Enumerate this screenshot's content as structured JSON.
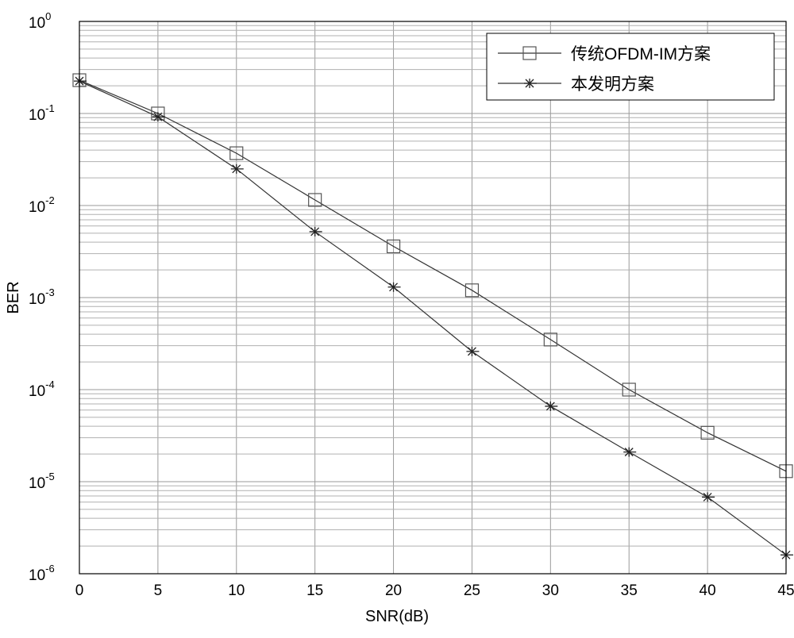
{
  "chart_data": {
    "type": "line",
    "xlabel": "SNR(dB)",
    "ylabel": "BER",
    "xlim": [
      0,
      45
    ],
    "ylim": [
      1e-06,
      1
    ],
    "yscale": "log",
    "grid": true,
    "legend_position": "top-right",
    "x_ticks": [
      "0",
      "5",
      "10",
      "15",
      "20",
      "25",
      "30",
      "35",
      "40",
      "45"
    ],
    "y_ticks": [
      {
        "base": "10",
        "exp": "0"
      },
      {
        "base": "10",
        "exp": "-1"
      },
      {
        "base": "10",
        "exp": "-2"
      },
      {
        "base": "10",
        "exp": "-3"
      },
      {
        "base": "10",
        "exp": "-4"
      },
      {
        "base": "10",
        "exp": "-5"
      },
      {
        "base": "10",
        "exp": "-6"
      }
    ],
    "x": [
      0,
      5,
      10,
      15,
      20,
      25,
      30,
      35,
      40,
      45
    ],
    "series": [
      {
        "name": "传统OFDM-IM方案",
        "marker": "square",
        "values": [
          0.23,
          0.1,
          0.037,
          0.0115,
          0.0036,
          0.0012,
          0.00035,
          0.0001,
          3.4e-05,
          1.3e-05
        ]
      },
      {
        "name": "本发明方案",
        "marker": "star",
        "values": [
          0.225,
          0.092,
          0.025,
          0.0052,
          0.0013,
          0.00026,
          6.6e-05,
          2.1e-05,
          6.8e-06,
          1.6e-06
        ]
      }
    ]
  }
}
